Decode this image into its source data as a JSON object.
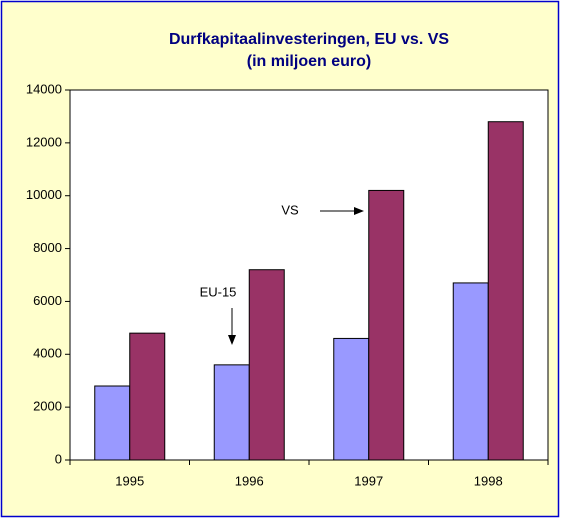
{
  "chart_data": {
    "type": "bar",
    "title": "Durfkapitaalinvesteringen, EU vs. VS",
    "subtitle": "(in miljoen euro)",
    "categories": [
      "1995",
      "1996",
      "1997",
      "1998"
    ],
    "series": [
      {
        "name": "EU-15",
        "color": "#9999ff",
        "values": [
          2800,
          3600,
          4600,
          6700
        ]
      },
      {
        "name": "VS",
        "color": "#993366",
        "values": [
          4800,
          7200,
          10200,
          12800
        ]
      }
    ],
    "ylim": [
      0,
      14000
    ],
    "yticks": [
      0,
      2000,
      4000,
      6000,
      8000,
      10000,
      12000,
      14000
    ],
    "grid": false
  }
}
